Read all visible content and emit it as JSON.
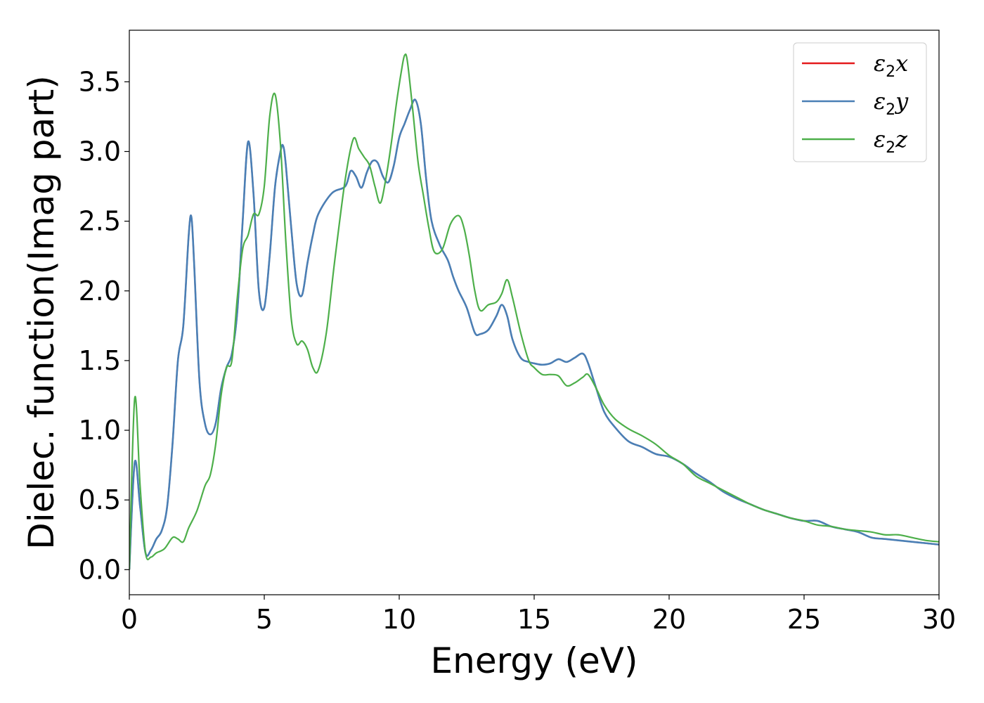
{
  "chart_data": {
    "type": "line",
    "title": "",
    "xlabel": "Energy (eV)",
    "ylabel": "Dielec. function(Imag part)",
    "xlim": [
      0,
      30
    ],
    "ylim": [
      -0.18,
      3.87
    ],
    "xticks": [
      0,
      5,
      10,
      15,
      20,
      25,
      30
    ],
    "yticks": [
      0.0,
      0.5,
      1.0,
      1.5,
      2.0,
      2.5,
      3.0,
      3.5
    ],
    "xtick_labels": [
      "0",
      "5",
      "10",
      "15",
      "20",
      "25",
      "30"
    ],
    "ytick_labels": [
      "0.0",
      "0.5",
      "1.0",
      "1.5",
      "2.0",
      "2.5",
      "3.0",
      "3.5"
    ],
    "grid": false,
    "legend_position": "top-right",
    "series": [
      {
        "name": "ε₂x",
        "legend_symbol": "ε",
        "legend_sub": "2",
        "legend_var": "x",
        "color": "#e41a1c",
        "x": [
          0,
          0.2,
          0.4,
          0.6,
          0.8,
          1.0,
          1.2,
          1.4,
          1.6,
          1.8,
          2.0,
          2.2,
          2.3,
          2.4,
          2.6,
          2.8,
          3.0,
          3.2,
          3.4,
          3.6,
          3.8,
          4.0,
          4.2,
          4.4,
          4.6,
          4.8,
          5.0,
          5.2,
          5.4,
          5.6,
          5.7,
          5.8,
          6.0,
          6.2,
          6.4,
          6.6,
          6.8,
          7.0,
          7.5,
          8.0,
          8.2,
          8.4,
          8.6,
          8.8,
          9.0,
          9.2,
          9.4,
          9.6,
          9.8,
          10.0,
          10.2,
          10.4,
          10.6,
          10.8,
          11.0,
          11.2,
          11.5,
          11.8,
          12.0,
          12.2,
          12.5,
          12.8,
          13.0,
          13.3,
          13.6,
          13.8,
          14.0,
          14.2,
          14.5,
          14.8,
          15.0,
          15.3,
          15.6,
          15.9,
          16.2,
          16.5,
          16.8,
          17.0,
          17.3,
          17.6,
          18.0,
          18.5,
          19.0,
          19.5,
          20.0,
          20.5,
          21.0,
          21.5,
          22.0,
          22.5,
          23.0,
          23.5,
          24.0,
          24.5,
          25.0,
          25.5,
          26.0,
          26.5,
          27.0,
          27.5,
          28.0,
          28.5,
          29.0,
          29.5,
          30.0
        ],
        "y": [
          0.0,
          0.77,
          0.45,
          0.12,
          0.14,
          0.22,
          0.28,
          0.45,
          0.9,
          1.5,
          1.75,
          2.4,
          2.53,
          2.2,
          1.35,
          1.05,
          0.97,
          1.05,
          1.3,
          1.45,
          1.55,
          1.85,
          2.5,
          3.07,
          2.7,
          2.0,
          1.88,
          2.25,
          2.75,
          3.0,
          3.04,
          2.9,
          2.45,
          2.05,
          1.97,
          2.2,
          2.4,
          2.55,
          2.7,
          2.75,
          2.86,
          2.82,
          2.74,
          2.85,
          2.93,
          2.92,
          2.82,
          2.78,
          2.9,
          3.1,
          3.2,
          3.3,
          3.37,
          3.2,
          2.8,
          2.5,
          2.33,
          2.22,
          2.1,
          2.0,
          1.88,
          1.7,
          1.69,
          1.72,
          1.82,
          1.9,
          1.82,
          1.65,
          1.52,
          1.49,
          1.48,
          1.47,
          1.48,
          1.51,
          1.49,
          1.52,
          1.55,
          1.48,
          1.3,
          1.13,
          1.02,
          0.92,
          0.88,
          0.83,
          0.81,
          0.76,
          0.69,
          0.63,
          0.56,
          0.51,
          0.47,
          0.43,
          0.4,
          0.37,
          0.35,
          0.35,
          0.31,
          0.29,
          0.27,
          0.23,
          0.22,
          0.21,
          0.2,
          0.19,
          0.18
        ]
      },
      {
        "name": "ε₂y",
        "legend_symbol": "ε",
        "legend_sub": "2",
        "legend_var": "y",
        "color": "#4a7fb5",
        "x": [
          0,
          0.2,
          0.4,
          0.6,
          0.8,
          1.0,
          1.2,
          1.4,
          1.6,
          1.8,
          2.0,
          2.2,
          2.3,
          2.4,
          2.6,
          2.8,
          3.0,
          3.2,
          3.4,
          3.6,
          3.8,
          4.0,
          4.2,
          4.4,
          4.6,
          4.8,
          5.0,
          5.2,
          5.4,
          5.6,
          5.7,
          5.8,
          6.0,
          6.2,
          6.4,
          6.6,
          6.8,
          7.0,
          7.5,
          8.0,
          8.2,
          8.4,
          8.6,
          8.8,
          9.0,
          9.2,
          9.4,
          9.6,
          9.8,
          10.0,
          10.2,
          10.4,
          10.6,
          10.8,
          11.0,
          11.2,
          11.5,
          11.8,
          12.0,
          12.2,
          12.5,
          12.8,
          13.0,
          13.3,
          13.6,
          13.8,
          14.0,
          14.2,
          14.5,
          14.8,
          15.0,
          15.3,
          15.6,
          15.9,
          16.2,
          16.5,
          16.8,
          17.0,
          17.3,
          17.6,
          18.0,
          18.5,
          19.0,
          19.5,
          20.0,
          20.5,
          21.0,
          21.5,
          22.0,
          22.5,
          23.0,
          23.5,
          24.0,
          24.5,
          25.0,
          25.5,
          26.0,
          26.5,
          27.0,
          27.5,
          28.0,
          28.5,
          29.0,
          29.5,
          30.0
        ],
        "y": [
          0.0,
          0.77,
          0.45,
          0.12,
          0.14,
          0.22,
          0.28,
          0.45,
          0.9,
          1.5,
          1.75,
          2.4,
          2.53,
          2.2,
          1.35,
          1.05,
          0.97,
          1.05,
          1.3,
          1.45,
          1.55,
          1.85,
          2.5,
          3.07,
          2.7,
          2.0,
          1.88,
          2.25,
          2.75,
          3.0,
          3.04,
          2.9,
          2.45,
          2.05,
          1.97,
          2.2,
          2.4,
          2.55,
          2.7,
          2.75,
          2.86,
          2.82,
          2.74,
          2.85,
          2.93,
          2.92,
          2.82,
          2.78,
          2.9,
          3.1,
          3.2,
          3.3,
          3.37,
          3.2,
          2.8,
          2.5,
          2.33,
          2.22,
          2.1,
          2.0,
          1.88,
          1.7,
          1.69,
          1.72,
          1.82,
          1.9,
          1.82,
          1.65,
          1.52,
          1.49,
          1.48,
          1.47,
          1.48,
          1.51,
          1.49,
          1.52,
          1.55,
          1.48,
          1.3,
          1.13,
          1.02,
          0.92,
          0.88,
          0.83,
          0.81,
          0.76,
          0.69,
          0.63,
          0.56,
          0.51,
          0.47,
          0.43,
          0.4,
          0.37,
          0.35,
          0.35,
          0.31,
          0.29,
          0.27,
          0.23,
          0.22,
          0.21,
          0.2,
          0.19,
          0.18
        ]
      },
      {
        "name": "ε₂z",
        "legend_symbol": "ε",
        "legend_sub": "2",
        "legend_var": "z",
        "color": "#4daf4a",
        "x": [
          0,
          0.2,
          0.4,
          0.6,
          0.8,
          1.0,
          1.3,
          1.6,
          1.8,
          2.0,
          2.2,
          2.5,
          2.8,
          3.0,
          3.2,
          3.4,
          3.6,
          3.8,
          4.0,
          4.2,
          4.4,
          4.6,
          4.8,
          5.0,
          5.2,
          5.4,
          5.6,
          5.8,
          6.0,
          6.2,
          6.4,
          6.6,
          6.8,
          7.0,
          7.3,
          7.6,
          8.0,
          8.3,
          8.5,
          8.7,
          8.9,
          9.1,
          9.3,
          9.5,
          9.7,
          9.9,
          10.1,
          10.2,
          10.3,
          10.5,
          10.7,
          10.9,
          11.1,
          11.3,
          11.6,
          11.9,
          12.2,
          12.4,
          12.6,
          12.8,
          13.0,
          13.3,
          13.6,
          13.8,
          14.0,
          14.2,
          14.5,
          14.8,
          15.0,
          15.3,
          15.6,
          15.9,
          16.2,
          16.5,
          16.8,
          17.0,
          17.3,
          17.6,
          18.0,
          18.5,
          19.0,
          19.5,
          20.0,
          20.5,
          21.0,
          21.5,
          22.0,
          22.5,
          23.0,
          23.5,
          24.0,
          24.5,
          25.0,
          25.5,
          26.0,
          26.5,
          27.0,
          27.5,
          28.0,
          28.5,
          29.0,
          29.5,
          30.0
        ],
        "y": [
          0.0,
          1.23,
          0.6,
          0.12,
          0.09,
          0.12,
          0.15,
          0.23,
          0.22,
          0.2,
          0.3,
          0.42,
          0.6,
          0.68,
          0.9,
          1.25,
          1.45,
          1.5,
          1.95,
          2.3,
          2.4,
          2.55,
          2.55,
          2.75,
          3.25,
          3.41,
          3.05,
          2.35,
          1.8,
          1.62,
          1.64,
          1.58,
          1.45,
          1.43,
          1.7,
          2.2,
          2.8,
          3.09,
          3.02,
          2.96,
          2.9,
          2.75,
          2.63,
          2.8,
          3.05,
          3.35,
          3.6,
          3.69,
          3.65,
          3.3,
          2.92,
          2.68,
          2.45,
          2.28,
          2.3,
          2.48,
          2.54,
          2.45,
          2.25,
          2.0,
          1.86,
          1.9,
          1.92,
          1.98,
          2.08,
          1.95,
          1.7,
          1.5,
          1.45,
          1.4,
          1.4,
          1.39,
          1.32,
          1.34,
          1.38,
          1.4,
          1.3,
          1.18,
          1.08,
          1.01,
          0.96,
          0.9,
          0.82,
          0.76,
          0.67,
          0.62,
          0.57,
          0.52,
          0.47,
          0.43,
          0.4,
          0.37,
          0.35,
          0.32,
          0.31,
          0.29,
          0.28,
          0.27,
          0.25,
          0.25,
          0.23,
          0.21,
          0.2
        ]
      }
    ]
  }
}
